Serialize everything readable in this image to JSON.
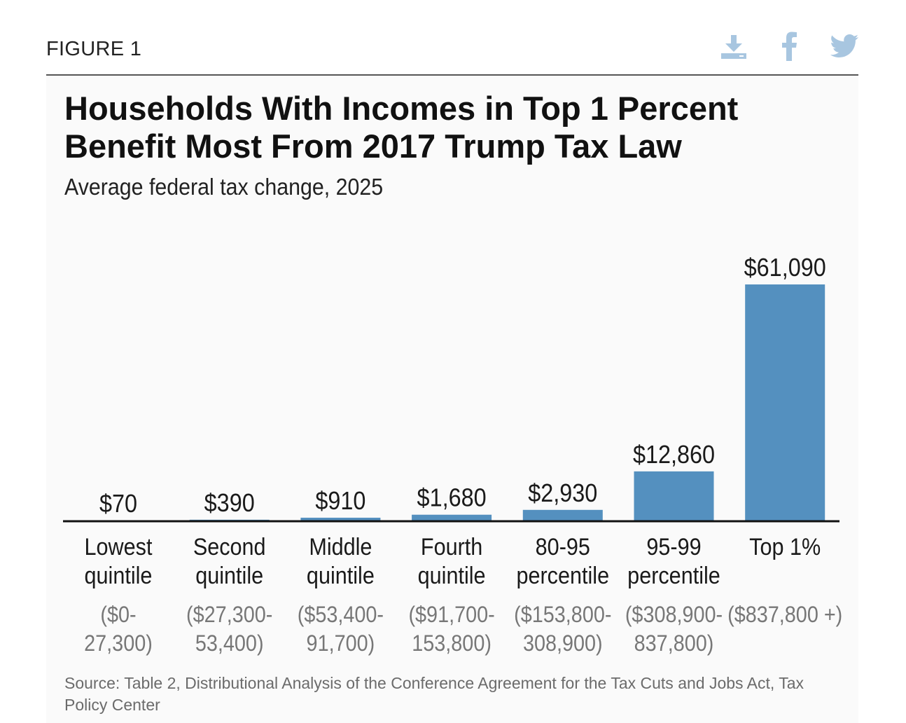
{
  "figure_label": "FIGURE 1",
  "share_icons": [
    "download-icon",
    "facebook-icon",
    "twitter-icon"
  ],
  "colors": {
    "bar": "#5490bf",
    "icon": "#a8c6e0",
    "axis": "#111111",
    "range_text": "#777777",
    "source_text": "#6b6b6b"
  },
  "chart_data": {
    "type": "bar",
    "title": "Households With Incomes in Top 1 Percent Benefit Most From 2017 Trump Tax Law",
    "subtitle": "Average federal tax change, 2025",
    "categories": [
      {
        "line1": "Lowest",
        "line2": "quintile",
        "range1": "($0-",
        "range2": "27,300)"
      },
      {
        "line1": "Second",
        "line2": "quintile",
        "range1": "($27,300-",
        "range2": "53,400)"
      },
      {
        "line1": "Middle",
        "line2": "quintile",
        "range1": "($53,400-",
        "range2": "91,700)"
      },
      {
        "line1": "Fourth",
        "line2": "quintile",
        "range1": "($91,700-",
        "range2": "153,800)"
      },
      {
        "line1": "80-95",
        "line2": "percentile",
        "range1": "($153,800-",
        "range2": "308,900)"
      },
      {
        "line1": "95-99",
        "line2": "percentile",
        "range1": "($308,900-",
        "range2": "837,800)"
      },
      {
        "line1": "Top 1%",
        "line2": "",
        "range1": "($837,800 +)",
        "range2": ""
      }
    ],
    "values": [
      70,
      390,
      910,
      1680,
      2930,
      12860,
      61090
    ],
    "value_labels": [
      "$70",
      "$390",
      "$910",
      "$1,680",
      "$2,930",
      "$12,860",
      "$61,090"
    ],
    "ylim": [
      0,
      61090
    ],
    "grid": false,
    "legend": "none"
  },
  "source": "Source: Table 2, Distributional Analysis of the Conference Agreement for the Tax Cuts and Jobs Act, Tax Policy Center"
}
